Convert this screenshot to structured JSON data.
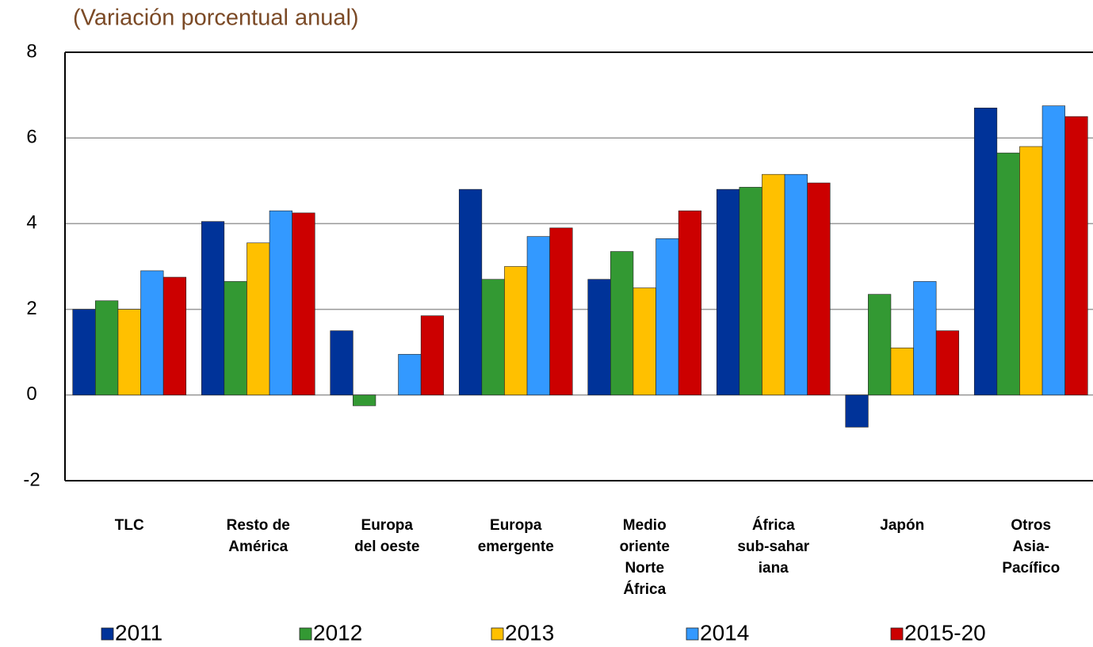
{
  "chart_data": {
    "type": "bar",
    "title": "(Variación porcentual anual)",
    "categories": [
      "TLC",
      "Resto de\nAmérica",
      "Europa\ndel oeste",
      "Europa\nemergente",
      "Medio\noriente\nNorte\nÁfrica",
      "África\nsub-sahar\niana",
      "Japón",
      "Otros\nAsia-\nPacífico"
    ],
    "series": [
      {
        "name": "2011",
        "color": "#003399",
        "values": [
          2.0,
          4.05,
          1.5,
          4.8,
          2.7,
          4.8,
          -0.75,
          6.7
        ]
      },
      {
        "name": "2012",
        "color": "#339933",
        "values": [
          2.2,
          2.65,
          -0.25,
          2.7,
          3.35,
          4.85,
          2.35,
          5.65
        ]
      },
      {
        "name": "2013",
        "color": "#ffc000",
        "values": [
          2.0,
          3.55,
          0,
          3.0,
          2.5,
          5.15,
          1.1,
          5.8
        ]
      },
      {
        "name": "2014",
        "color": "#3399ff",
        "values": [
          2.9,
          4.3,
          0.95,
          3.7,
          3.65,
          5.15,
          2.65,
          6.75
        ]
      },
      {
        "name": "2015-20",
        "color": "#cc0000",
        "values": [
          2.75,
          4.25,
          1.85,
          3.9,
          4.3,
          4.95,
          1.5,
          6.5
        ]
      }
    ],
    "ylim": [
      -2,
      8
    ],
    "yticks": [
      -2,
      0,
      2,
      4,
      6,
      8
    ],
    "grid": true,
    "legend": "bottom"
  }
}
